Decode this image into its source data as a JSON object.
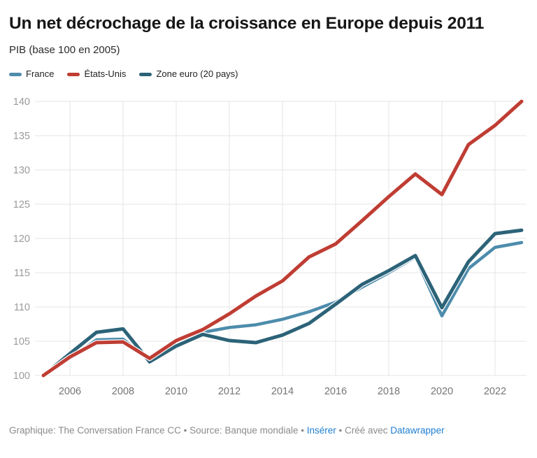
{
  "header": {
    "title": "Un net décrochage de la croissance en Europe depuis 2011",
    "subtitle": "PIB (base 100 en 2005)"
  },
  "chart_data": {
    "type": "line",
    "title": "Un net décrochage de la croissance en Europe depuis 2011",
    "subtitle": "PIB (base 100 en 2005)",
    "x": [
      2005,
      2006,
      2007,
      2008,
      2009,
      2010,
      2011,
      2012,
      2013,
      2014,
      2015,
      2016,
      2017,
      2018,
      2019,
      2020,
      2021,
      2022,
      2023
    ],
    "series": [
      {
        "name": "France",
        "color": "#4d8cac",
        "values": [
          100,
          102.5,
          105.2,
          105.3,
          102.2,
          104.1,
          106.3,
          107.0,
          107.4,
          108.2,
          109.3,
          110.7,
          112.9,
          115.0,
          117.3,
          108.7,
          115.6,
          118.7,
          119.4
        ]
      },
      {
        "name": "États-Unis",
        "color": "#bf3d33",
        "values": [
          100,
          102.7,
          104.8,
          104.9,
          102.5,
          105.1,
          106.7,
          109.0,
          111.6,
          113.8,
          117.3,
          119.2,
          122.6,
          126.1,
          129.4,
          126.4,
          133.7,
          136.5,
          140.0
        ]
      },
      {
        "name": "Zone euro (20 pays)",
        "color": "#2c6378",
        "values": [
          100,
          103.2,
          106.3,
          106.8,
          102.0,
          104.3,
          106.0,
          105.1,
          104.8,
          105.9,
          107.6,
          110.4,
          113.3,
          115.3,
          117.5,
          109.9,
          116.6,
          120.7,
          121.2
        ]
      }
    ],
    "ylim": [
      100,
      140
    ],
    "yticks": [
      100,
      105,
      110,
      115,
      120,
      125,
      130,
      135,
      140
    ],
    "xticks": [
      2006,
      2008,
      2010,
      2012,
      2014,
      2016,
      2018,
      2020,
      2022
    ],
    "grid": "on",
    "legend_position": "top"
  },
  "footer": {
    "left_text": "Graphique: The Conversation France CC • Source: Banque mondiale •",
    "link_embed": "Insérer",
    "mid_text": " • Créé avec",
    "link_datawrapper": "Datawrapper"
  },
  "colors": {
    "link": "#1f7fd4",
    "grid": "#e4e4e4",
    "ytick_label": "#9b9b9b",
    "xtick_label": "#757575",
    "halo": "#ffffff"
  }
}
